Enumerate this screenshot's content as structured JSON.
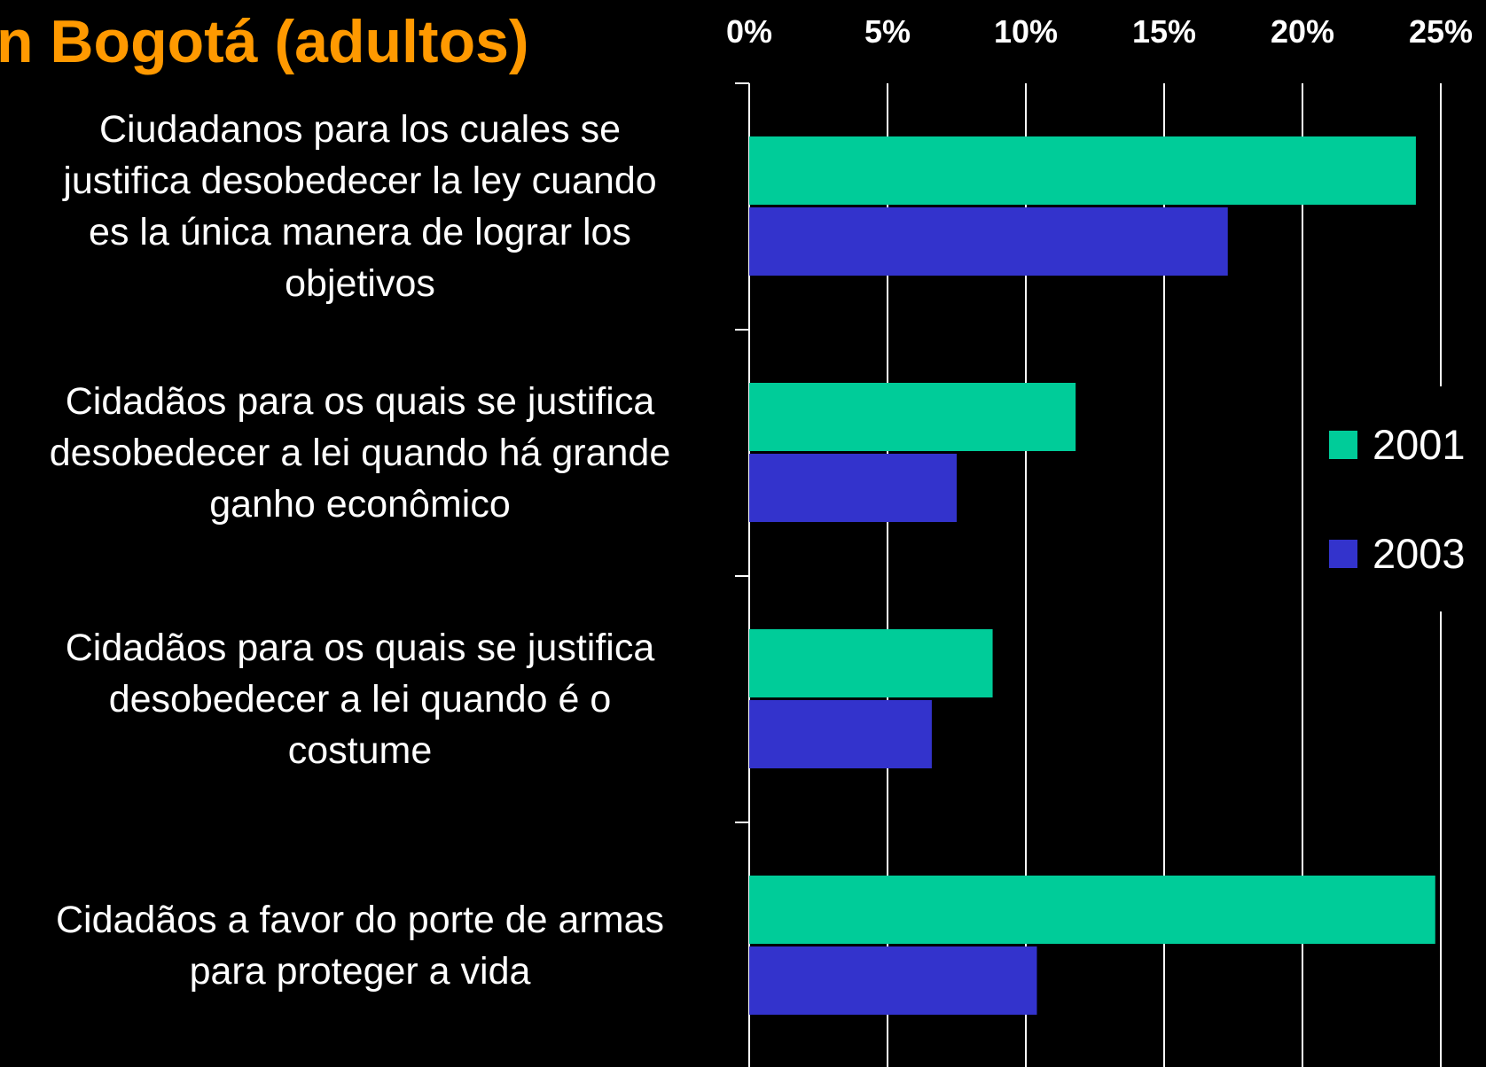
{
  "chart_data": {
    "type": "hbar",
    "title": "n Bogotá (adultos)",
    "categories": [
      "Ciudadanos para los cuales se\njustifica desobedecer la ley cuando\nes la única manera de lograr los\nobjetivos",
      "Cidadãos para os quais se justifica\ndesobedecer a lei quando há grande\nganho econômico",
      "Cidadãos para os quais se justifica\ndesobedecer a lei quando é o\ncostume",
      "Cidadãos a favor do porte de armas\npara proteger a vida"
    ],
    "series": [
      {
        "name": "2001",
        "color": "#00cc99",
        "values": [
          24.1,
          11.8,
          8.8,
          24.8
        ]
      },
      {
        "name": "2003",
        "color": "#3333cc",
        "values": [
          17.3,
          7.5,
          6.6,
          10.4
        ]
      }
    ],
    "xlim": [
      0,
      25
    ],
    "xticks": [
      {
        "value": 0,
        "label": "0%"
      },
      {
        "value": 5,
        "label": "5%"
      },
      {
        "value": 10,
        "label": "10%"
      },
      {
        "value": 15,
        "label": "15%"
      },
      {
        "value": 20,
        "label": "20%"
      },
      {
        "value": 25,
        "label": "25%"
      }
    ],
    "grid": true,
    "legend": "right"
  }
}
